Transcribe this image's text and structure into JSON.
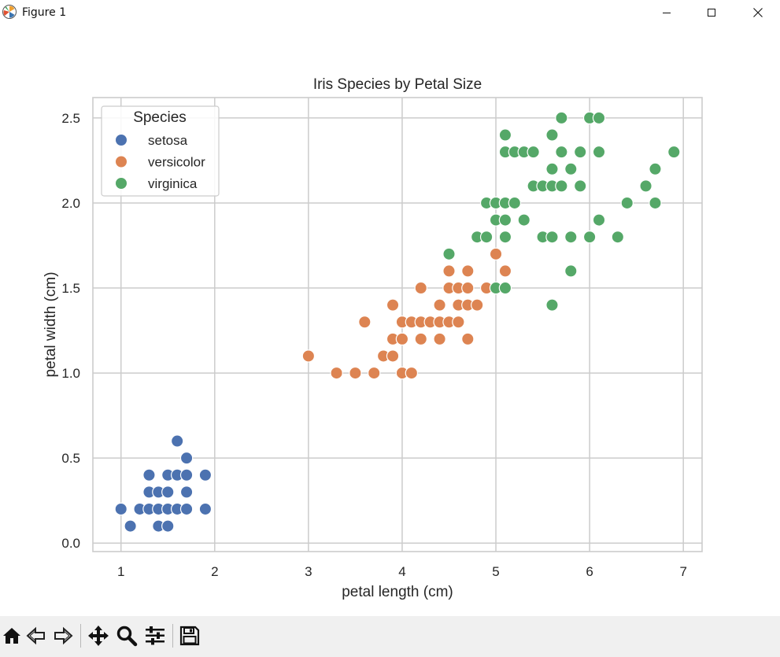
{
  "window": {
    "title": "Figure 1",
    "controls": [
      "minimize",
      "maximize",
      "close"
    ]
  },
  "toolbar": {
    "tools": [
      {
        "name": "home",
        "icon": "home-icon"
      },
      {
        "name": "back",
        "icon": "back-arrow-icon"
      },
      {
        "name": "forward",
        "icon": "forward-arrow-icon"
      },
      {
        "name": "pan",
        "icon": "move-icon"
      },
      {
        "name": "zoom",
        "icon": "magnifier-icon"
      },
      {
        "name": "configure-subplots",
        "icon": "sliders-icon"
      },
      {
        "name": "save",
        "icon": "floppy-disk-icon"
      }
    ]
  },
  "colors": {
    "setosa": "#4c72b0",
    "versicolor": "#dd8452",
    "virginica": "#55a868",
    "grid": "#cccccc",
    "axes_edge": "#cccccc",
    "text": "#262626"
  },
  "chart_data": {
    "type": "scatter",
    "title": "Iris Species by Petal Size",
    "xlabel": "petal length (cm)",
    "ylabel": "petal width (cm)",
    "xlim": [
      0.7,
      7.2
    ],
    "ylim": [
      -0.05,
      2.62
    ],
    "xticks": [
      1,
      2,
      3,
      4,
      5,
      6,
      7
    ],
    "yticks": [
      0.0,
      0.5,
      1.0,
      1.5,
      2.0,
      2.5
    ],
    "ytick_labels": [
      "0.0",
      "0.5",
      "1.0",
      "1.5",
      "2.0",
      "2.5"
    ],
    "grid": true,
    "legend": {
      "title": "Species",
      "position": "top-left"
    },
    "series": [
      {
        "name": "setosa",
        "points": [
          [
            1.0,
            0.2
          ],
          [
            1.1,
            0.1
          ],
          [
            1.2,
            0.2
          ],
          [
            1.3,
            0.2
          ],
          [
            1.3,
            0.3
          ],
          [
            1.3,
            0.4
          ],
          [
            1.4,
            0.1
          ],
          [
            1.4,
            0.2
          ],
          [
            1.4,
            0.3
          ],
          [
            1.5,
            0.1
          ],
          [
            1.5,
            0.2
          ],
          [
            1.5,
            0.3
          ],
          [
            1.5,
            0.4
          ],
          [
            1.6,
            0.2
          ],
          [
            1.6,
            0.4
          ],
          [
            1.6,
            0.6
          ],
          [
            1.7,
            0.2
          ],
          [
            1.7,
            0.3
          ],
          [
            1.7,
            0.4
          ],
          [
            1.7,
            0.5
          ],
          [
            1.9,
            0.2
          ],
          [
            1.9,
            0.4
          ]
        ]
      },
      {
        "name": "versicolor",
        "points": [
          [
            3.0,
            1.1
          ],
          [
            3.3,
            1.0
          ],
          [
            3.5,
            1.0
          ],
          [
            3.6,
            1.3
          ],
          [
            3.7,
            1.0
          ],
          [
            3.8,
            1.1
          ],
          [
            3.9,
            1.1
          ],
          [
            3.9,
            1.2
          ],
          [
            3.9,
            1.4
          ],
          [
            4.0,
            1.0
          ],
          [
            4.0,
            1.2
          ],
          [
            4.0,
            1.3
          ],
          [
            4.1,
            1.0
          ],
          [
            4.1,
            1.3
          ],
          [
            4.2,
            1.2
          ],
          [
            4.2,
            1.3
          ],
          [
            4.2,
            1.5
          ],
          [
            4.3,
            1.3
          ],
          [
            4.4,
            1.2
          ],
          [
            4.4,
            1.3
          ],
          [
            4.4,
            1.4
          ],
          [
            4.5,
            1.3
          ],
          [
            4.5,
            1.5
          ],
          [
            4.5,
            1.6
          ],
          [
            4.6,
            1.3
          ],
          [
            4.6,
            1.4
          ],
          [
            4.6,
            1.5
          ],
          [
            4.7,
            1.2
          ],
          [
            4.7,
            1.4
          ],
          [
            4.7,
            1.5
          ],
          [
            4.7,
            1.6
          ],
          [
            4.8,
            1.4
          ],
          [
            4.8,
            1.8
          ],
          [
            4.9,
            1.5
          ],
          [
            5.0,
            1.7
          ],
          [
            5.1,
            1.6
          ]
        ]
      },
      {
        "name": "virginica",
        "points": [
          [
            4.5,
            1.7
          ],
          [
            4.8,
            1.8
          ],
          [
            4.9,
            1.8
          ],
          [
            4.9,
            2.0
          ],
          [
            5.0,
            1.5
          ],
          [
            5.0,
            1.9
          ],
          [
            5.0,
            2.0
          ],
          [
            5.1,
            1.5
          ],
          [
            5.1,
            1.8
          ],
          [
            5.1,
            1.9
          ],
          [
            5.1,
            2.0
          ],
          [
            5.1,
            2.3
          ],
          [
            5.1,
            2.4
          ],
          [
            5.2,
            2.0
          ],
          [
            5.2,
            2.3
          ],
          [
            5.3,
            1.9
          ],
          [
            5.3,
            2.3
          ],
          [
            5.4,
            2.1
          ],
          [
            5.4,
            2.3
          ],
          [
            5.5,
            1.8
          ],
          [
            5.5,
            2.1
          ],
          [
            5.6,
            1.4
          ],
          [
            5.6,
            1.8
          ],
          [
            5.6,
            2.1
          ],
          [
            5.6,
            2.2
          ],
          [
            5.6,
            2.4
          ],
          [
            5.7,
            2.1
          ],
          [
            5.7,
            2.3
          ],
          [
            5.7,
            2.5
          ],
          [
            5.8,
            1.6
          ],
          [
            5.8,
            1.8
          ],
          [
            5.8,
            2.2
          ],
          [
            5.9,
            2.1
          ],
          [
            5.9,
            2.3
          ],
          [
            6.0,
            1.8
          ],
          [
            6.0,
            2.5
          ],
          [
            6.1,
            1.9
          ],
          [
            6.1,
            2.3
          ],
          [
            6.1,
            2.5
          ],
          [
            6.3,
            1.8
          ],
          [
            6.4,
            2.0
          ],
          [
            6.6,
            2.1
          ],
          [
            6.7,
            2.0
          ],
          [
            6.7,
            2.2
          ],
          [
            6.9,
            2.3
          ]
        ]
      }
    ]
  }
}
